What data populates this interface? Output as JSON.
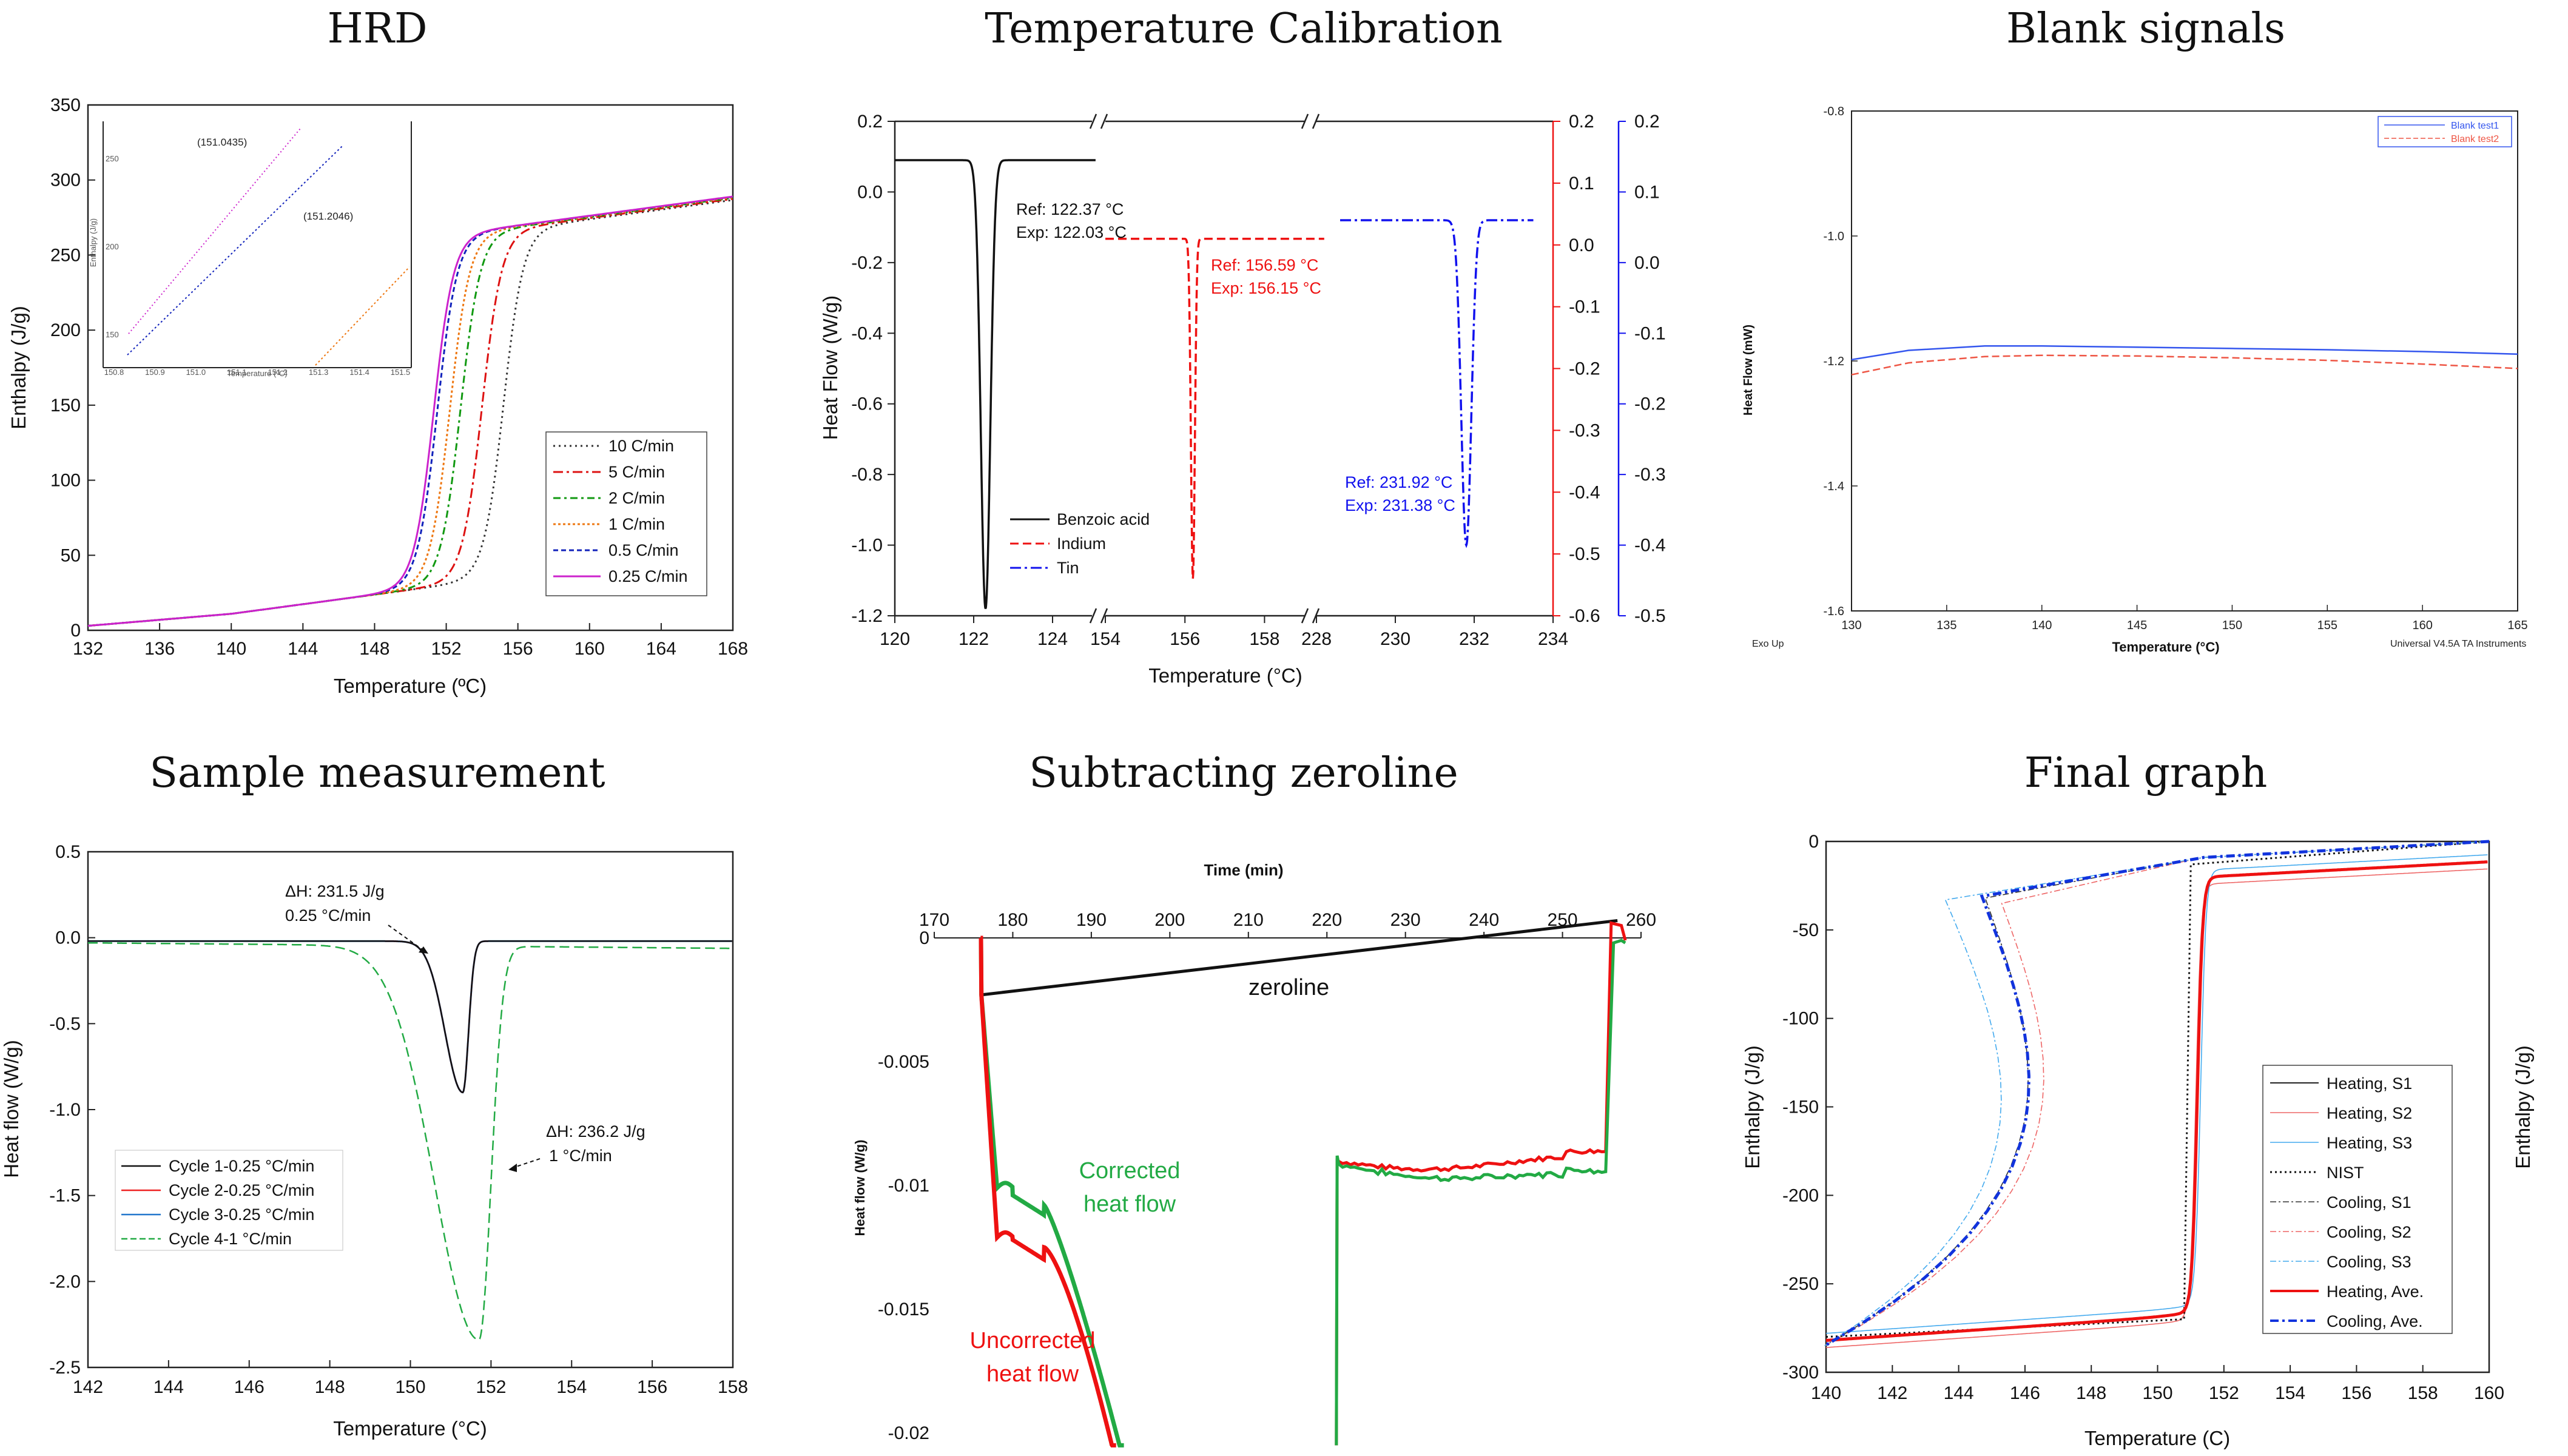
{
  "figure": {
    "titles": [
      "HRD",
      "Temperature Calibration",
      "Blank signals",
      "Sample measurement",
      "Subtracting zeroline",
      "Final graph"
    ]
  },
  "chart_data": [
    {
      "id": "hrd",
      "type": "line",
      "title": "HRD",
      "xlabel": "Temperature (ºC)",
      "ylabel": "Enthalpy (J/g)",
      "xlim": [
        132,
        168
      ],
      "ylim": [
        0,
        350
      ],
      "xticks": [
        132,
        136,
        140,
        144,
        148,
        152,
        156,
        160,
        164,
        168
      ],
      "yticks": [
        0,
        50,
        100,
        150,
        200,
        250,
        300,
        350
      ],
      "legend_position": "lower-right",
      "series": [
        {
          "name": "10 C/min",
          "color": "#333333",
          "dash": "3,6",
          "midpoint": 155.2,
          "width": 2.0
        },
        {
          "name": "5 C/min",
          "color": "#dd1111",
          "dash": "16,6,4,6",
          "midpoint": 154.0,
          "width": 1.7
        },
        {
          "name": "2 C/min",
          "color": "#119911",
          "dash": "12,6,4,6",
          "midpoint": 152.8,
          "width": 1.4
        },
        {
          "name": "1 C/min",
          "color": "#ee7711",
          "dash": "4,4",
          "midpoint": 152.2,
          "width": 1.2
        },
        {
          "name": "0.5 C/min",
          "color": "#1122bb",
          "dash": "8,5",
          "midpoint": 151.5,
          "width": 1.1
        },
        {
          "name": "0.25 C/min",
          "color": "#cc22cc",
          "dash": "",
          "midpoint": 151.3,
          "width": 1.0
        }
      ],
      "inset": {
        "ylabel": "Enthalpy (J/g)",
        "xlabel": "Temperature (ºC)",
        "xticks": [
          "150.8",
          "150.9",
          "151.0",
          "151.1",
          "151.2",
          "151.3",
          "151.4",
          "151.5"
        ],
        "yticks": [
          "150",
          "200",
          "250"
        ],
        "annotations": [
          "(151.0435)",
          "(151.2046)"
        ]
      }
    },
    {
      "id": "temp-calibration",
      "type": "line",
      "title": "Temperature Calibration",
      "xlabel": "Temperature (°C)",
      "ylabel": "Heat Flow (W/g)",
      "segments": [
        {
          "xlim": [
            120,
            125
          ],
          "xticks": [
            120,
            122,
            124
          ]
        },
        {
          "xlim": [
            154,
            159
          ],
          "xticks": [
            154,
            156,
            158
          ]
        },
        {
          "xlim": [
            228,
            234
          ],
          "xticks": [
            228,
            230,
            232,
            234
          ]
        }
      ],
      "ylim_left": [
        -1.2,
        0.2
      ],
      "yticks_left": [
        "0.2",
        "0.0",
        "-0.2",
        "-0.4",
        "-0.6",
        "-0.8",
        "-1.0",
        "-1.2"
      ],
      "ylim_right_red": [
        -0.6,
        0.2
      ],
      "yticks_right_red": [
        "0.2",
        "0.1",
        "0.0",
        "-0.1",
        "-0.2",
        "-0.3",
        "-0.4",
        "-0.5",
        "-0.6"
      ],
      "ylim_right_blue": [
        -0.5,
        0.2
      ],
      "yticks_right_blue": [
        "0.2",
        "0.1",
        "0.0",
        "-0.1",
        "-0.2",
        "-0.3",
        "-0.4",
        "-0.5"
      ],
      "series": [
        {
          "name": "Benzoic acid",
          "color": "#111111",
          "peak_temp": 122.3,
          "baseline": 0.09,
          "peak": -1.18
        },
        {
          "name": "Indium",
          "color": "#ee1111",
          "peak_temp": 156.2,
          "baseline": 0.01,
          "peak": -0.54
        },
        {
          "name": "Tin",
          "color": "#1111ee",
          "peak_temp": 231.8,
          "baseline": 0.06,
          "peak": -0.4
        }
      ],
      "annotations": [
        {
          "ref": "Ref: 122.37 °C",
          "exp": "Exp: 122.03 °C",
          "color": "#111111"
        },
        {
          "ref": "Ref: 156.59 °C",
          "exp": "Exp: 156.15 °C",
          "color": "#ee1111"
        },
        {
          "ref": "Ref: 231.92 °C",
          "exp": "Exp: 231.38 °C",
          "color": "#1111ee"
        }
      ]
    },
    {
      "id": "blank-signals",
      "type": "line",
      "title": "Blank signals",
      "xlabel": "Temperature (°C)",
      "ylabel": "Heat Flow (mW)",
      "xlim": [
        130,
        165
      ],
      "ylim": [
        -1.6,
        -0.8
      ],
      "xticks": [
        130,
        135,
        140,
        145,
        150,
        155,
        160,
        165
      ],
      "yticks": [
        "-0.8",
        "-1.0",
        "-1.2",
        "-1.4",
        "-1.6"
      ],
      "footer_left": "Exo Up",
      "footer_right": "Universal V4.5A TA Instruments",
      "series": [
        {
          "name": "Blank test1",
          "color": "#3355ee",
          "x": [
            130,
            133,
            137,
            140,
            145,
            150,
            155,
            160,
            165
          ],
          "y": [
            -1.198,
            -1.183,
            -1.176,
            -1.176,
            -1.178,
            -1.18,
            -1.182,
            -1.185,
            -1.189
          ]
        },
        {
          "name": "Blank test2",
          "color": "#ee5544",
          "x": [
            130,
            133,
            137,
            140,
            145,
            150,
            155,
            160,
            165
          ],
          "y": [
            -1.222,
            -1.203,
            -1.193,
            -1.191,
            -1.192,
            -1.195,
            -1.199,
            -1.205,
            -1.212
          ]
        }
      ]
    },
    {
      "id": "sample-measurement",
      "type": "line",
      "title": "Sample measurement",
      "xlabel": "Temperature (°C)",
      "ylabel": "Heat flow (W/g)",
      "xlim": [
        142,
        158
      ],
      "ylim": [
        -2.5,
        0.5
      ],
      "xticks": [
        142,
        144,
        146,
        148,
        150,
        152,
        154,
        156,
        158
      ],
      "yticks": [
        "0.5",
        "0.0",
        "-0.5",
        "-1.0",
        "-1.5",
        "-2.0",
        "-2.5"
      ],
      "series": [
        {
          "name": "Cycle 1-0.25 °C/min",
          "color": "#111111",
          "peak_temp": 151.3,
          "peak": -0.9
        },
        {
          "name": "Cycle 2-0.25 °C/min",
          "color": "#ee2222",
          "peak_temp": 151.3,
          "peak": -0.9
        },
        {
          "name": "Cycle 3-0.25 °C/min",
          "color": "#2277cc",
          "peak_temp": 151.3,
          "peak": -0.9
        },
        {
          "name": "Cycle 4-1 °C/min",
          "color": "#22aa44",
          "peak_temp": 151.7,
          "peak": -2.32
        }
      ],
      "annotations": [
        {
          "line1": "ΔH: 231.5 J/g",
          "line2": "0.25 °C/min"
        },
        {
          "line1": "ΔH: 236.2 J/g",
          "line2": "1 °C/min"
        }
      ]
    },
    {
      "id": "subtracting-zeroline",
      "type": "line",
      "title": "Subtracting zeroline",
      "xlabel": "Time (min)",
      "ylabel": "Heat flow (W/g)",
      "xlim": [
        170,
        260
      ],
      "ylim": [
        -0.02,
        0
      ],
      "xticks": [
        170,
        180,
        190,
        200,
        210,
        220,
        230,
        240,
        250,
        260
      ],
      "yticks": [
        "0",
        "-0.005",
        "-0.01",
        "-0.015",
        "-0.02"
      ],
      "labels": {
        "zeroline": "zeroline",
        "corrected": [
          "Corrected",
          "heat flow"
        ],
        "uncorrected": [
          "Uncorrected",
          "heat flow"
        ]
      },
      "series": [
        {
          "name": "zeroline",
          "color": "#111111",
          "x": [
            176,
            257
          ],
          "y": [
            -0.0023,
            0.0007
          ]
        },
        {
          "name": "Uncorrected heat flow",
          "color": "#ee1111"
        },
        {
          "name": "Corrected heat flow",
          "color": "#22aa44"
        }
      ]
    },
    {
      "id": "final-graph",
      "type": "line",
      "title": "Final graph",
      "xlabel": "Temperature (C)",
      "ylabel": "Enthalpy (J/g)",
      "ylabel_right": "Enthalpy (J/g)",
      "xlim": [
        140,
        160
      ],
      "ylim": [
        -300,
        0
      ],
      "xticks": [
        140,
        142,
        144,
        146,
        148,
        150,
        152,
        154,
        156,
        158,
        160
      ],
      "yticks": [
        0,
        -50,
        -100,
        -150,
        -200,
        -250,
        -300
      ],
      "legend_position": "lower-right",
      "series": [
        {
          "name": "Heating, S1",
          "color": "#222222",
          "dash": "",
          "width": 2
        },
        {
          "name": "Heating, S2",
          "color": "#ee6666",
          "dash": "",
          "width": 1.6
        },
        {
          "name": "Heating, S3",
          "color": "#44aaee",
          "dash": "",
          "width": 1.6
        },
        {
          "name": "NIST",
          "color": "#111111",
          "dash": "3,5",
          "width": 3
        },
        {
          "name": "Cooling, S1",
          "color": "#333333",
          "dash": "10,4,3,4",
          "width": 1.6
        },
        {
          "name": "Cooling, S2",
          "color": "#ee6666",
          "dash": "10,4,3,4",
          "width": 1.6
        },
        {
          "name": "Cooling, S3",
          "color": "#44aaee",
          "dash": "10,4,3,4",
          "width": 1.6
        },
        {
          "name": "Heating, Ave.",
          "color": "#ee1111",
          "dash": "",
          "width": 5
        },
        {
          "name": "Cooling, Ave.",
          "color": "#1133dd",
          "dash": "14,6,4,6",
          "width": 5
        }
      ]
    }
  ]
}
